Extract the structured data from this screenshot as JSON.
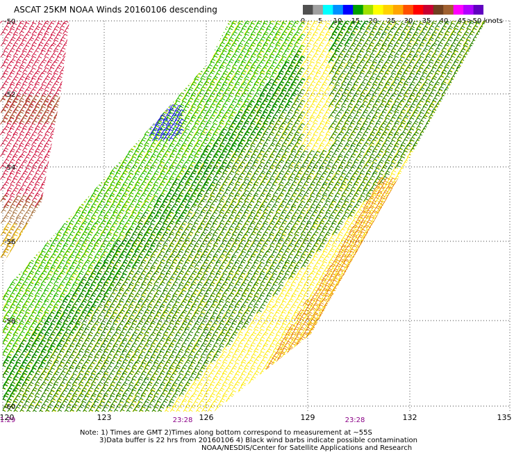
{
  "title": "ASCAT 25KM NOAA Winds 20160106 descending",
  "colorbar": {
    "labels": [
      "0",
      "5",
      "10",
      "15",
      "20",
      "25",
      "30",
      "35",
      "40",
      "45",
      ">50 knots"
    ],
    "colors": [
      "#505050",
      "#a0a0a0",
      "#00ffff",
      "#0090ff",
      "#0000ff",
      "#00a000",
      "#a0e000",
      "#ffff00",
      "#ffd200",
      "#ffa500",
      "#ff5000",
      "#ff0000",
      "#c80032",
      "#704020",
      "#a06030",
      "#ff00ff",
      "#b000ff",
      "#6000c0"
    ]
  },
  "map": {
    "lat_labels": [
      "-50",
      "-52",
      "-54",
      "-56",
      "-58",
      "-60"
    ],
    "lon_labels": [
      "120",
      "123",
      "126",
      "129",
      "132",
      "135"
    ],
    "time_labels": [
      "1:29",
      "23:28",
      "23:28"
    ],
    "barb_colors": {
      "dark_green": "#007000",
      "green": "#00b400",
      "yellow": "#ffea00",
      "gold": "#f0c000",
      "orange": "#e88000",
      "red": "#cc0030",
      "brown": "#a06830",
      "blue": "#0000e0"
    }
  },
  "notes": {
    "line1": "Note: 1) Times are GMT 2)Times along bottom correspond to measurement at ~55S",
    "line2": "3)Data buffer is 22 hrs from 20160106 4) Black wind barbs indicate possible contamination",
    "line3": "NOAA/NESDIS/Center for Satellite Applications and Research"
  }
}
